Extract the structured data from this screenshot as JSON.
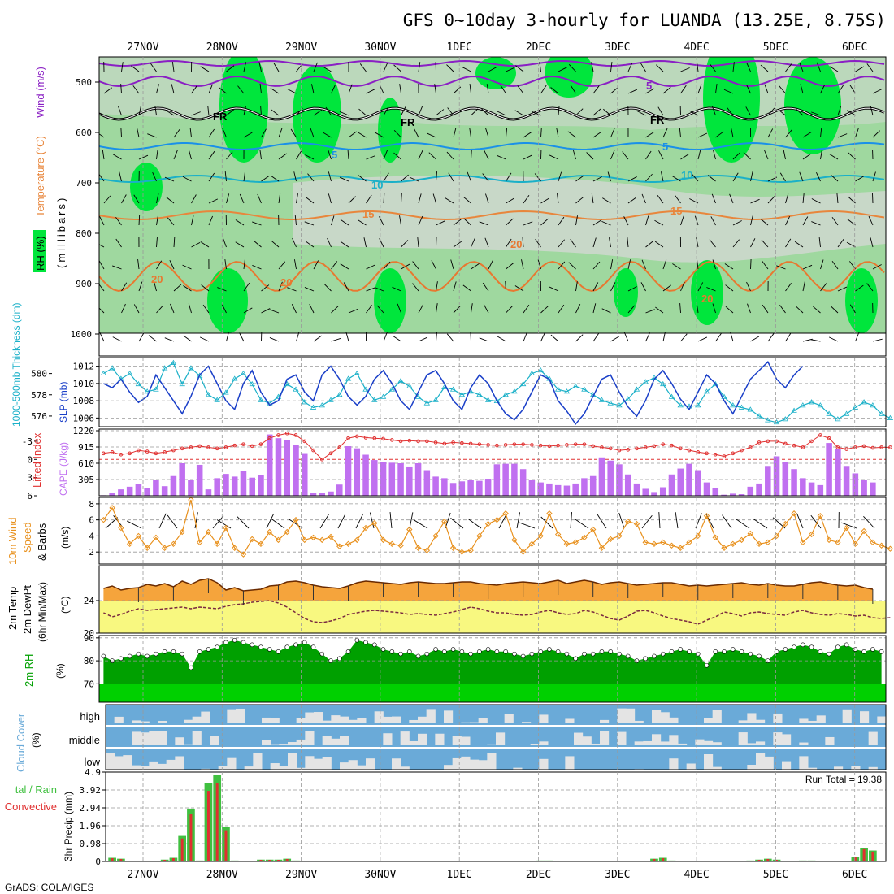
{
  "title": "GFS 0~10day 3-hourly for LUANDA (13.25E, 8.75S)",
  "credit": "GrADS: COLA/IGES",
  "dates": [
    "27NOV",
    "28NOV",
    "29NOV",
    "30NOV",
    "1DEC",
    "2DEC",
    "3DEC",
    "4DEC",
    "5DEC",
    "6DEC"
  ],
  "colors": {
    "rh_light": "#c8d8c8",
    "rh_mid": "#7ed87e",
    "rh_high": "#00e63c",
    "wind": "#8a1fc4",
    "temp": "#e8863c",
    "slp": "#1a3fc8",
    "thickness": "#1ab0c8",
    "li": "#e03030",
    "cape": "#c070f0",
    "wspd": "#e8901c",
    "t2m": "#f5a43c",
    "td2m": "#f8f880",
    "rh2m_dark": "#00a000",
    "rh2m_light": "#00d000",
    "cloud": "#6aaad8",
    "rain_total": "#40c040",
    "rain_conv": "#e03030"
  },
  "panel_labels": {
    "upper": {
      "rh": "RH (%)",
      "temperature": "Temperature (°C)",
      "wind": "Wind (m/s)",
      "axis": "(millibars)"
    },
    "slp": {
      "thickness": "1000-500mb Thickness (dm)",
      "slp": "SLP (mb)"
    },
    "cape": {
      "li": "Lifted Index",
      "cape": "CAPE (J/kg)"
    },
    "wind10": {
      "a": "10m Wind",
      "b": "Speed",
      "c": "& Barbs",
      "unit": "(m/s)"
    },
    "temp2": {
      "a": "2m Temp",
      "b": "2m DewPt",
      "c": "(6hr Min/Max)",
      "unit": "(°C)"
    },
    "rh2": {
      "a": "2m RH",
      "unit": "(%)"
    },
    "cloud": {
      "a": "Cloud Cover",
      "unit": "(%)",
      "high": "high",
      "middle": "middle",
      "low": "low"
    },
    "precip": {
      "total": "tal / Rain",
      "conv": "Convective",
      "axis": "3hr Precip (mm)"
    },
    "run_total": "Run Total = 19.38"
  },
  "upper_air": {
    "levels": [
      "500",
      "600",
      "700",
      "800",
      "900",
      "1000"
    ],
    "contour_labels": [
      "5",
      "FR",
      "FR",
      "FR",
      "5",
      "5",
      "10",
      "10",
      "15",
      "15",
      "20",
      "20",
      "20",
      "20"
    ]
  },
  "chart_data": [
    {
      "type": "line",
      "name": "slp",
      "ylabel": "SLP (mb)",
      "ticks": [
        "1006",
        "1008",
        "1010",
        "1012"
      ],
      "ylim": [
        1005,
        1013
      ],
      "values": [
        1010,
        1009.5,
        1010.5,
        1009,
        1007.8,
        1008.5,
        1011,
        1009.5,
        1008,
        1006.5,
        1008.5,
        1011,
        1012,
        1010,
        1008,
        1007,
        1010,
        1011.5,
        1009,
        1007.5,
        1008,
        1010.5,
        1011,
        1009,
        1008,
        1011,
        1012,
        1010.5,
        1008.5,
        1007.5,
        1008.5,
        1010.5,
        1011.5,
        1010,
        1008,
        1007,
        1009,
        1011,
        1011.5,
        1010,
        1008,
        1007,
        1009.5,
        1011,
        1010,
        1008,
        1006.5,
        1005.8,
        1007,
        1009,
        1011,
        1010.5,
        1008,
        1006.8,
        1005.3,
        1006.5,
        1008.5,
        1010.5,
        1011,
        1009,
        1007.3,
        1006.2,
        1008,
        1010.5,
        1011.5,
        1010,
        1008.2,
        1007,
        1009,
        1011,
        1010,
        1008,
        1006.5,
        1008.5,
        1010.5,
        1011.5,
        1012.5,
        1010.5,
        1009.5,
        1011,
        1012
      ]
    },
    {
      "type": "line",
      "name": "thickness",
      "ylabel": "1000-500mb Thickness (dm)",
      "ticks": [
        "576",
        "578",
        "580"
      ],
      "ylim": [
        575,
        581.5
      ],
      "values": [
        580,
        580.5,
        579.5,
        580,
        579,
        578.3,
        578.5,
        580.5,
        581,
        579,
        580.5,
        579.8,
        578,
        577.5,
        578.2,
        579.5,
        580,
        579,
        577.5,
        577.2,
        577.8,
        579,
        578.5,
        577.3,
        576.8,
        577,
        577.5,
        578,
        579.5,
        580,
        578.5,
        577.5,
        577.8,
        578.5,
        579.3,
        578.8,
        577.8,
        577.2,
        577.5,
        578.7,
        578.5,
        578,
        578.3,
        578,
        577.5,
        577.4,
        578,
        578.3,
        579,
        580,
        580.3,
        579.5,
        578.5,
        578.3,
        578.8,
        578.5,
        578,
        577.5,
        577.2,
        577,
        577.6,
        578.5,
        579.2,
        579.6,
        579,
        577.8,
        577,
        576.9,
        577,
        578.3,
        579,
        577.8,
        577,
        576.8,
        576.6,
        576,
        575.6,
        575.4,
        575.7,
        576.5,
        577,
        577.3,
        577,
        576.2,
        575.7,
        576.2,
        576.8,
        577.3,
        577,
        576.2,
        575.8
      ]
    },
    {
      "type": "line",
      "name": "lifted_index",
      "ylabel": "Lifted Index",
      "ticks": [
        "-3",
        "0",
        "3",
        "6"
      ],
      "ylim": [
        6,
        -5
      ],
      "values": [
        -1,
        -1.2,
        -0.8,
        -1,
        -1.5,
        -1.3,
        -1,
        -1.2,
        -1.5,
        -1.8,
        -2,
        -2.2,
        -2,
        -1.8,
        -2,
        -2.3,
        -2.5,
        -2.2,
        -2.5,
        -3.5,
        -4,
        -4.3,
        -4,
        -3,
        -1.5,
        0,
        -1,
        -2,
        -3.5,
        -3.8,
        -3.6,
        -3.5,
        -3.4,
        -3.2,
        -3,
        -3.1,
        -3,
        -3,
        -2.8,
        -2.6,
        -2.8,
        -2.7,
        -2.6,
        -2.5,
        -2.4,
        -2.3,
        -2.4,
        -2.5,
        -2.5,
        -2.4,
        -2.3,
        -2.2,
        -2.3,
        -2.4,
        -2.5,
        -2.5,
        -2.2,
        -2,
        -1.8,
        -1.5,
        -1.6,
        -1.8,
        -2,
        -2.2,
        -2.5,
        -2.3,
        -1.8,
        -1.5,
        -1.2,
        -1,
        -0.8,
        -0.5,
        -1,
        -1.5,
        -2,
        -2.8,
        -3,
        -3,
        -2.6,
        -2.3,
        -2,
        -3,
        -4,
        -3.5,
        -2,
        -1.7,
        -2,
        -2.2,
        -1.9,
        -2,
        -2
      ]
    },
    {
      "type": "bar",
      "name": "cape",
      "ylabel": "CAPE (J/kg)",
      "ticks": [
        "305",
        "610",
        "915",
        "1220"
      ],
      "ylim": [
        0,
        1220
      ],
      "values": [
        10,
        60,
        120,
        170,
        220,
        140,
        300,
        180,
        370,
        610,
        300,
        580,
        120,
        330,
        410,
        360,
        470,
        340,
        390,
        1150,
        1080,
        1050,
        960,
        800,
        60,
        60,
        80,
        210,
        930,
        890,
        770,
        670,
        640,
        620,
        610,
        550,
        610,
        480,
        360,
        330,
        240,
        270,
        300,
        280,
        320,
        590,
        600,
        600,
        500,
        300,
        250,
        230,
        200,
        190,
        230,
        330,
        370,
        720,
        660,
        590,
        400,
        230,
        130,
        70,
        160,
        400,
        510,
        600,
        480,
        250,
        140,
        20,
        40,
        30,
        170,
        230,
        560,
        740,
        640,
        500,
        330,
        250,
        200,
        990,
        880,
        560,
        420,
        290,
        250
      ]
    },
    {
      "type": "line",
      "name": "wind_speed_10m",
      "ylabel": "Speed (m/s)",
      "ticks": [
        "2",
        "4",
        "6",
        "8"
      ],
      "ylim": [
        0.5,
        8.8
      ],
      "values": [
        6,
        7.5,
        5,
        3,
        4,
        2.5,
        3.8,
        2.5,
        3,
        4.5,
        8.5,
        3.2,
        4.5,
        3,
        5,
        2.5,
        1.7,
        3.6,
        3,
        4.5,
        3.5,
        4.5,
        6,
        3.5,
        3.8,
        3.5,
        3.9,
        2.7,
        3,
        3.5,
        5,
        5.6,
        3.5,
        3,
        2.8,
        4.8,
        2.5,
        2.2,
        4,
        5.8,
        2.5,
        2,
        2.2,
        4,
        5.5,
        6,
        6.8,
        3.5,
        2,
        3,
        4,
        6.8,
        4.2,
        3,
        3.2,
        3.8,
        4.8,
        2.5,
        3.6,
        4,
        5.8,
        5.5,
        3.2,
        3,
        3.2,
        2.8,
        2.5,
        3.2,
        4,
        6.5,
        3.8,
        2.5,
        3,
        3.5,
        4.3,
        3,
        3.2,
        4,
        5.5,
        6.8,
        3.2,
        4.2,
        6.5,
        3.5,
        3.2,
        5,
        3,
        4.6,
        3.2,
        2.8,
        2.4
      ]
    },
    {
      "type": "area",
      "name": "temp_2m",
      "ylabel": "2m Temp (°C)",
      "ticks": [
        "20",
        "24"
      ],
      "ylim": [
        20,
        28.3
      ],
      "values": [
        25.5,
        25.8,
        25.3,
        25.5,
        25.6,
        26,
        25.8,
        26.1,
        25.7,
        26.4,
        26,
        26.5,
        26.7,
        26.2,
        25.3,
        25.6,
        25.2,
        25.3,
        25.4,
        25.8,
        25.9,
        26.3,
        26.4,
        26.2,
        25.9,
        25.7,
        25.6,
        25.5,
        25.8,
        26.2,
        26.4,
        26.3,
        26.2,
        26.1,
        26,
        26.2,
        26.3,
        26.2,
        26.1,
        26.1,
        26.2,
        26.3,
        26.3,
        26.1,
        26,
        25.9,
        26.1,
        26.2,
        26.3,
        26.2,
        26.1,
        26.3,
        26.5,
        26.1,
        26.3,
        26.5,
        26.3,
        26,
        26.2,
        26.3,
        26.1,
        25.9,
        26,
        26.1,
        26.2,
        26.2,
        26,
        25.8,
        25.9,
        25.8,
        25.9,
        26,
        26.1,
        26.2,
        26,
        25.9,
        26.1,
        25.9,
        25.8,
        25.8,
        26,
        26.2,
        26.3,
        26.1,
        25.9,
        25.8,
        25.9,
        25.6,
        25.4
      ]
    },
    {
      "type": "line",
      "name": "dewpoint_2m",
      "ylabel": "2m DewPt (°C)",
      "ylim": [
        20,
        28.3
      ],
      "values": [
        22.5,
        22,
        22.3,
        22.7,
        23,
        22.8,
        22.9,
        23,
        23.1,
        23.2,
        23,
        23.2,
        23.1,
        23,
        23.3,
        23.5,
        23.6,
        23.8,
        23.9,
        24,
        23.7,
        23.2,
        22.5,
        21.8,
        21.4,
        21.3,
        21.5,
        21.8,
        22.3,
        22.5,
        22.7,
        22.8,
        22.7,
        22.6,
        22.5,
        22.3,
        22.4,
        22.3,
        22.2,
        22.4,
        22.6,
        22.9,
        23.2,
        23,
        22.7,
        22.5,
        22.5,
        22.3,
        22.2,
        22.3,
        22.6,
        22.8,
        22.5,
        22.3,
        22.4,
        22.8,
        22.6,
        22.2,
        21.8,
        21.6,
        22.1,
        22.7,
        22.8,
        22.5,
        22.1,
        21.8,
        21.6,
        21.4,
        21.1,
        21.6,
        22,
        22.6,
        22.4,
        22.1,
        22.5,
        22.6,
        22.4,
        22.3,
        22.2,
        22.6,
        22.8,
        22.5,
        22.3,
        22.2,
        22.4,
        22.3,
        22.1,
        22.2,
        21.9,
        21.8,
        21.9
      ]
    },
    {
      "type": "area",
      "name": "rh_2m",
      "ylabel": "2m RH (%)",
      "ticks": [
        "70",
        "80",
        "90"
      ],
      "ylim": [
        62,
        91
      ],
      "values": [
        82,
        80,
        81,
        82,
        83,
        82,
        83,
        84,
        84,
        83,
        77,
        84,
        85,
        86,
        88,
        89,
        88,
        87,
        86,
        85,
        84,
        86,
        87,
        88,
        86,
        83,
        80,
        81,
        84,
        89,
        88,
        87,
        85,
        84,
        83,
        84,
        82,
        83,
        85,
        84,
        85,
        84,
        83,
        84,
        85,
        84,
        84,
        83,
        82,
        83,
        84,
        85,
        84,
        83,
        81,
        83,
        83,
        84,
        84,
        83,
        82,
        80,
        81,
        82,
        83,
        84,
        85,
        84,
        83,
        78,
        84,
        84,
        85,
        84,
        83,
        82,
        80,
        84,
        85,
        86,
        87,
        86,
        84,
        83,
        86,
        87,
        85,
        84,
        85,
        84
      ]
    },
    {
      "type": "bar",
      "name": "precip_total",
      "ylabel": "3hr Precip (mm)",
      "ticks": [
        "0",
        "0.98",
        "1.96",
        "2.94",
        "3.92",
        "4.9"
      ],
      "ylim": [
        0,
        4.9
      ],
      "values": [
        0,
        0.2,
        0.15,
        0,
        0,
        0,
        0,
        0.1,
        0.2,
        1.4,
        2.9,
        0.05,
        4.3,
        4.75,
        1.9,
        0.05,
        0,
        0,
        0.1,
        0.1,
        0.1,
        0.15,
        0.05,
        0,
        0,
        0,
        0,
        0,
        0,
        0,
        0,
        0,
        0,
        0,
        0,
        0,
        0,
        0,
        0,
        0,
        0,
        0,
        0,
        0,
        0,
        0,
        0,
        0,
        0,
        0,
        0.05,
        0.05,
        0,
        0,
        0,
        0,
        0,
        0,
        0,
        0,
        0,
        0,
        0,
        0.15,
        0.2,
        0.05,
        0,
        0,
        0,
        0,
        0,
        0,
        0,
        0,
        0.05,
        0.1,
        0.15,
        0.1,
        0,
        0,
        0.05,
        0.05,
        0,
        0,
        0,
        0,
        0.25,
        0.75,
        0.6,
        0,
        0
      ]
    }
  ]
}
